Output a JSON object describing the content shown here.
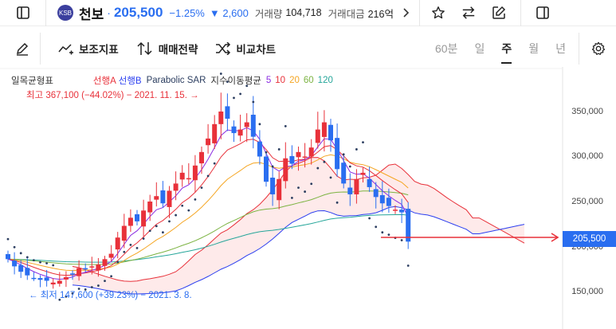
{
  "header": {
    "logo_text": "KSB",
    "name": "천보",
    "dot": "·",
    "price": "205,500",
    "change_pct": "−1.25%",
    "change_abs": "▼ 2,600",
    "volume_label": "거래량",
    "volume_value": "104,718",
    "amount_label": "거래대금",
    "amount_value": "216억",
    "more_icon": "chevron-right-icon"
  },
  "toolbar": {
    "draw_icon": "pencil-icon",
    "indicator_label": "보조지표",
    "strategy_label": "매매전략",
    "compare_label": "비교차트",
    "periods": [
      "60분",
      "일",
      "주",
      "월",
      "년"
    ],
    "active_period": "주"
  },
  "legend": {
    "ichimoku": "일목균형표",
    "spanA": "선행A",
    "spanB": "선행B",
    "sar": "Parabolic SAR",
    "ema_label": "지수이동평균",
    "ema_periods": [
      "5",
      "10",
      "20",
      "60",
      "120"
    ]
  },
  "annotations": {
    "high": "최고 367,100 (−44.02%) − 2021. 11. 15. →",
    "low": "← 최저 147,600 (+39.23%) − 2021. 3. 8."
  },
  "y_axis": {
    "ticks": [
      "350,000",
      "300,000",
      "250,000",
      "200,000",
      "150,000"
    ],
    "current_price_label": "205,500"
  },
  "colors": {
    "up": "#e8313a",
    "down": "#2a6ef0",
    "ema5": "#8a2be2",
    "ema10": "#e8313a",
    "ema20": "#f5a623",
    "ema60": "#7cb342",
    "ema120": "#26a69a",
    "sar": "#2c3e60",
    "spanA": "#e8313a",
    "spanB": "#2a3ef0",
    "cloud": "#fde3e3"
  },
  "chart_data": {
    "type": "candlestick",
    "weekly_close_approx": [
      186000,
      178000,
      172000,
      168000,
      165000,
      163000,
      162000,
      160000,
      162000,
      166000,
      170000,
      176000,
      175000,
      178000,
      180000,
      186000,
      192000,
      210000,
      223000,
      232000,
      228000,
      240000,
      250000,
      256000,
      248000,
      262000,
      270000,
      282000,
      276000,
      290000,
      305000,
      320000,
      336000,
      350000,
      342000,
      326000,
      330000,
      338000,
      322000,
      300000,
      272000,
      258000,
      275000,
      298000,
      292000,
      305000,
      300000,
      310000,
      330000,
      338000,
      318000,
      286000,
      270000,
      258000,
      275000,
      282000,
      266000,
      255000,
      248000,
      245000,
      241000,
      238000,
      205500
    ],
    "y_range": [
      135000,
      380000
    ]
  }
}
